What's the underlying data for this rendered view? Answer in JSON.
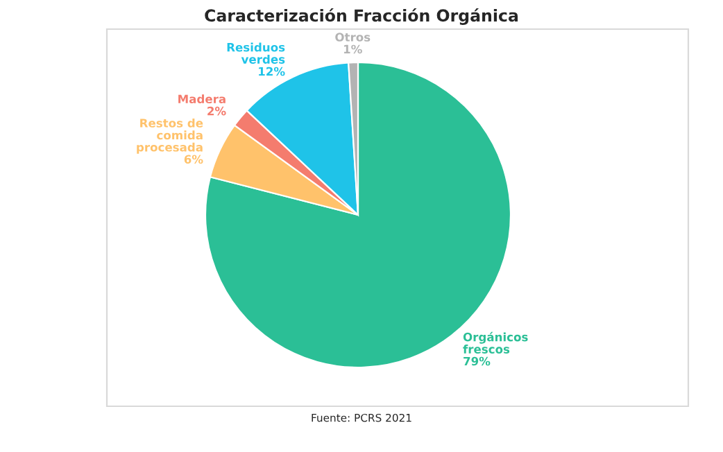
{
  "chart_data": {
    "type": "pie",
    "title": "Caracterización Fracción Orgánica",
    "categories": [
      "Orgánicos\nfrescos",
      "Restos de\ncomida\nprocesada",
      "Madera",
      "Residuos\nverdes",
      "Otros"
    ],
    "values": [
      79,
      6,
      2,
      12,
      1
    ],
    "value_labels": [
      "79%",
      "6%",
      "2%",
      "12%",
      "1%"
    ],
    "colors": [
      "#2bbf96",
      "#ffc26b",
      "#f47c6e",
      "#1fc3e8",
      "#b3b3b3"
    ],
    "legend": false,
    "annotations": [
      "Fuente: PCRS 2021"
    ]
  }
}
